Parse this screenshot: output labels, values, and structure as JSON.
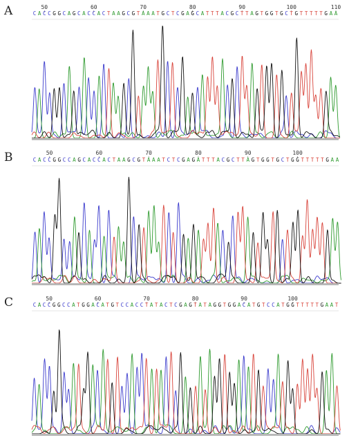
{
  "figure": {
    "panels": [
      {
        "label": "A",
        "sequence": "CACCGGCAGCACCACTAAGCGTAAATGCTCGAGCATTTACGCTTAGTGGTGCTGTTTTTGAA",
        "position_labels": [
          "50",
          "60",
          "70",
          "80",
          "90",
          "100",
          "110"
        ]
      },
      {
        "label": "B",
        "sequence": "CACCGGCCAGCACCACTAAGCGTAAATCTCGAGATTTACGCTTAGTGGTGCTGGTTTTTGAA",
        "position_labels": [
          "50",
          "60",
          "70",
          "80",
          "90",
          "100"
        ]
      },
      {
        "label": "C",
        "sequence": "CACCGGCCATGGACATGTCCACCTATACTCGAGTATAGGTGGACATGTCCATGGTTTTTGAAT",
        "position_labels": [
          "50",
          "60",
          "70",
          "80",
          "90",
          "100"
        ]
      }
    ],
    "base_colors": {
      "A": "#2e9a2e",
      "C": "#3a3acc",
      "G": "#111111",
      "T": "#d8433a"
    }
  }
}
